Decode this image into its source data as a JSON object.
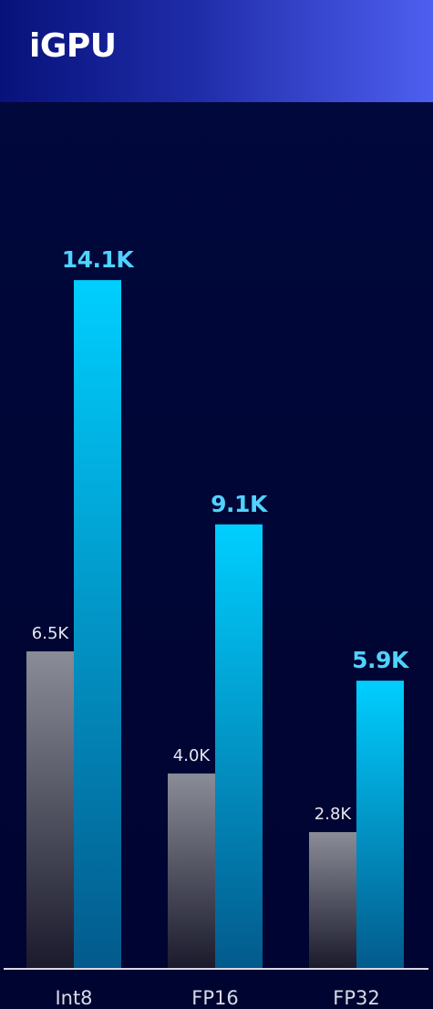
{
  "header": {
    "title": "iGPU"
  },
  "colors": {
    "baseline_top": "#8a8c97",
    "baseline_bottom": "#1a1a2c",
    "improved_top": "#00cfff",
    "improved_bottom": "#035a8c",
    "improved_label": "#4fd2ff",
    "baseline_label": "#e6e8ef",
    "axis": "#d8dbe6"
  },
  "chart_data": {
    "type": "bar",
    "title": "iGPU",
    "xlabel": "",
    "ylabel": "",
    "categories": [
      "Int8",
      "FP16",
      "FP32"
    ],
    "series": [
      {
        "values": [
          6.5,
          4.0,
          2.8
        ],
        "labels": [
          "6.5K",
          "4.0K",
          "2.8K"
        ]
      },
      {
        "values": [
          14.1,
          9.1,
          5.9
        ],
        "labels": [
          "14.1K",
          "9.1K",
          "5.9K"
        ]
      }
    ],
    "ylim": [
      0,
      16.1
    ],
    "grid": false,
    "legend": "none"
  }
}
